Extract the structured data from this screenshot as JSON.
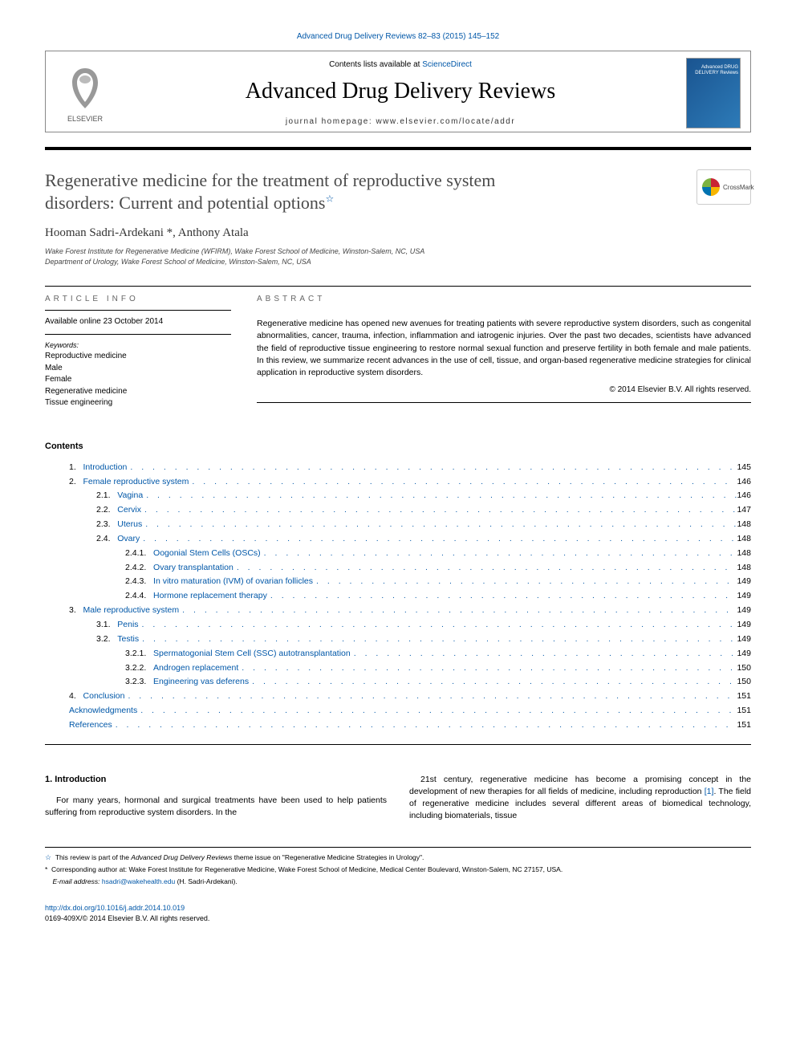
{
  "top_link": "Advanced Drug Delivery Reviews 82–83 (2015) 145–152",
  "header": {
    "contents_available": "Contents lists available at ",
    "sciencedirect": "ScienceDirect",
    "journal_title": "Advanced Drug Delivery Reviews",
    "homepage_label": "journal homepage: ",
    "homepage_url": "www.elsevier.com/locate/addr",
    "publisher": "ELSEVIER",
    "cover_text": "Advanced DRUG DELIVERY Reviews"
  },
  "article": {
    "title_line1": "Regenerative medicine for the treatment of reproductive system",
    "title_line2": "disorders: Current and potential options",
    "star": "☆",
    "crossmark": "CrossMark",
    "authors": "Hooman Sadri-Ardekani *, Anthony Atala",
    "affil1": "Wake Forest Institute for Regenerative Medicine (WFIRM), Wake Forest School of Medicine, Winston-Salem, NC, USA",
    "affil2": "Department of Urology, Wake Forest School of Medicine, Winston-Salem, NC, USA"
  },
  "info": {
    "article_info_heading": "article info",
    "abstract_heading": "abstract",
    "available": "Available online 23 October 2014",
    "keywords_label": "Keywords:",
    "keywords": [
      "Reproductive medicine",
      "Male",
      "Female",
      "Regenerative medicine",
      "Tissue engineering"
    ],
    "abstract": "Regenerative medicine has opened new avenues for treating patients with severe reproductive system disorders, such as congenital abnormalities, cancer, trauma, infection, inflammation and iatrogenic injuries. Over the past two decades, scientists have advanced the field of reproductive tissue engineering to restore normal sexual function and preserve fertility in both female and male patients. In this review, we summarize recent advances in the use of cell, tissue, and organ-based regenerative medicine strategies for clinical application in reproductive system disorders.",
    "copyright": "© 2014 Elsevier B.V. All rights reserved."
  },
  "contents_label": "Contents",
  "toc": [
    {
      "num": "1.",
      "label": "Introduction",
      "page": "145",
      "indent": 0
    },
    {
      "num": "2.",
      "label": "Female reproductive system",
      "page": "146",
      "indent": 0
    },
    {
      "num": "2.1.",
      "label": "Vagina",
      "page": "146",
      "indent": 1
    },
    {
      "num": "2.2.",
      "label": "Cervix",
      "page": "147",
      "indent": 1
    },
    {
      "num": "2.3.",
      "label": "Uterus",
      "page": "148",
      "indent": 1
    },
    {
      "num": "2.4.",
      "label": "Ovary",
      "page": "148",
      "indent": 1
    },
    {
      "num": "2.4.1.",
      "label": "Oogonial Stem Cells (OSCs)",
      "page": "148",
      "indent": 2
    },
    {
      "num": "2.4.2.",
      "label": "Ovary transplantation",
      "page": "148",
      "indent": 2
    },
    {
      "num": "2.4.3.",
      "label": "In vitro maturation (IVM) of ovarian follicles",
      "page": "149",
      "indent": 2
    },
    {
      "num": "2.4.4.",
      "label": "Hormone replacement therapy",
      "page": "149",
      "indent": 2
    },
    {
      "num": "3.",
      "label": "Male reproductive system",
      "page": "149",
      "indent": 0
    },
    {
      "num": "3.1.",
      "label": "Penis",
      "page": "149",
      "indent": 1
    },
    {
      "num": "3.2.",
      "label": "Testis",
      "page": "149",
      "indent": 1
    },
    {
      "num": "3.2.1.",
      "label": "Spermatogonial Stem Cell (SSC) autotransplantation",
      "page": "149",
      "indent": 2
    },
    {
      "num": "3.2.2.",
      "label": "Androgen replacement",
      "page": "150",
      "indent": 2
    },
    {
      "num": "3.2.3.",
      "label": "Engineering vas deferens",
      "page": "150",
      "indent": 2
    },
    {
      "num": "4.",
      "label": "Conclusion",
      "page": "151",
      "indent": 0
    },
    {
      "num": "",
      "label": "Acknowledgments",
      "page": "151",
      "indent": 0
    },
    {
      "num": "",
      "label": "References",
      "page": "151",
      "indent": 0
    }
  ],
  "body": {
    "section_heading": "1. Introduction",
    "para_left": "For many years, hormonal and surgical treatments have been used to help patients suffering from reproductive system disorders. In the",
    "para_right_a": "21st century, regenerative medicine has become a promising concept in the development of new therapies for all fields of medicine, including reproduction ",
    "cite": "[1]",
    "para_right_b": ". The field of regenerative medicine includes several different areas of biomedical technology, including biomaterials, tissue"
  },
  "footnotes": {
    "f1_pre": "This review is part of the ",
    "f1_ital": "Advanced Drug Delivery Reviews",
    "f1_post": " theme issue on \"Regenerative Medicine Strategies in Urology\".",
    "f2": "Corresponding author at: Wake Forest Institute for Regenerative Medicine, Wake Forest School of Medicine, Medical Center Boulevard, Winston-Salem, NC 27157, USA.",
    "f3_label": "E-mail address: ",
    "f3_email": "hsadri@wakehealth.edu",
    "f3_post": " (H. Sadri-Ardekani)."
  },
  "bottom": {
    "doi": "http://dx.doi.org/10.1016/j.addr.2014.10.019",
    "issn": "0169-409X/© 2014 Elsevier B.V. All rights reserved."
  },
  "colors": {
    "link": "#0057a8",
    "text": "#000000",
    "muted": "#666666",
    "rule": "#000000"
  }
}
